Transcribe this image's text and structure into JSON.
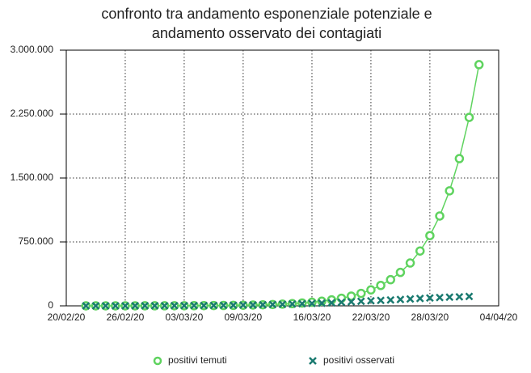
{
  "chart_data": {
    "type": "line",
    "title": [
      "confronto tra andamento esponenziale potenziale e",
      "andamento osservato dei contagiati"
    ],
    "x": [
      "2020-02-22",
      "2020-02-23",
      "2020-02-24",
      "2020-02-25",
      "2020-02-26",
      "2020-02-27",
      "2020-02-28",
      "2020-02-29",
      "2020-03-01",
      "2020-03-02",
      "2020-03-03",
      "2020-03-04",
      "2020-03-05",
      "2020-03-06",
      "2020-03-07",
      "2020-03-08",
      "2020-03-09",
      "2020-03-10",
      "2020-03-11",
      "2020-03-12",
      "2020-03-13",
      "2020-03-14",
      "2020-03-15",
      "2020-03-16",
      "2020-03-17",
      "2020-03-18",
      "2020-03-19",
      "2020-03-20",
      "2020-03-21",
      "2020-03-22",
      "2020-03-23",
      "2020-03-24",
      "2020-03-25",
      "2020-03-26",
      "2020-03-27",
      "2020-03-28",
      "2020-03-29",
      "2020-03-30",
      "2020-03-31",
      "2020-04-01",
      "2020-04-02"
    ],
    "series": [
      {
        "name": "positivi temuti",
        "color": "#5fd35f",
        "marker": "circle",
        "values": [
          150,
          190,
          240,
          300,
          390,
          490,
          630,
          810,
          1040,
          1330,
          1700,
          2200,
          2800,
          3600,
          4600,
          5900,
          7600,
          9700,
          12400,
          15900,
          20300,
          26000,
          33300,
          42600,
          54500,
          69800,
          89300,
          114300,
          146300,
          187300,
          239700,
          306800,
          392700,
          502700,
          643500,
          823700,
          1054300,
          1349500,
          1727300,
          2210900,
          2830000
        ]
      },
      {
        "name": "positivi osservati",
        "color": "#1a7a70",
        "marker": "cross",
        "values": [
          79,
          152,
          229,
          322,
          400,
          650,
          888,
          1128,
          1694,
          2036,
          2502,
          3089,
          3858,
          4636,
          5883,
          7375,
          9172,
          10149,
          12462,
          15113,
          17660,
          21157,
          24747,
          27980,
          31506,
          35713,
          41035,
          47021,
          53578,
          59138,
          63927,
          69176,
          74386,
          80539,
          86498,
          92472,
          97689,
          101739,
          105792,
          110574,
          null
        ]
      }
    ],
    "xlim": [
      "2020-02-20",
      "2020-04-04"
    ],
    "xticks": [
      {
        "value": "2020-02-20",
        "label": "20/02/20"
      },
      {
        "value": "2020-02-26",
        "label": "26/02/20"
      },
      {
        "value": "2020-03-03",
        "label": "03/03/20"
      },
      {
        "value": "2020-03-09",
        "label": "09/03/20"
      },
      {
        "value": "2020-03-16",
        "label": "16/03/20"
      },
      {
        "value": "2020-03-22",
        "label": "22/03/20"
      },
      {
        "value": "2020-03-28",
        "label": "28/03/20"
      },
      {
        "value": "2020-04-04",
        "label": "04/04/20"
      }
    ],
    "ylim": [
      0,
      3000000
    ],
    "yticks": [
      0,
      {
        "value": 750000,
        "label": "750.000"
      },
      {
        "value": 1500000,
        "label": "1.500.000"
      },
      {
        "value": 2250000,
        "label": "2.250.000"
      },
      {
        "value": 3000000,
        "label": "3.000.000"
      }
    ],
    "grid": true
  }
}
